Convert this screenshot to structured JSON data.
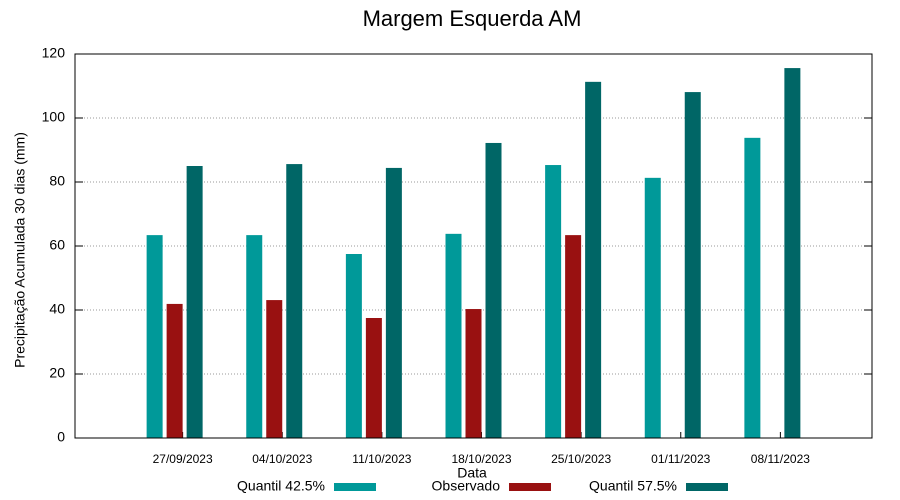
{
  "chart_data": {
    "type": "bar",
    "title": "Margem Esquerda AM",
    "x_label": "Data",
    "y_label": "Precipitação Acumulada 30 dias (mm)",
    "categories": [
      "27/09/2023",
      "04/10/2023",
      "11/10/2023",
      "18/10/2023",
      "25/10/2023",
      "01/11/2023",
      "08/11/2023"
    ],
    "series": [
      {
        "name": "Quantil 42.5%",
        "color": "#009999",
        "values": [
          63.4,
          63.4,
          57.5,
          63.8,
          85.3,
          81.3,
          93.8
        ]
      },
      {
        "name": "Observado",
        "color": "#991111",
        "values": [
          41.9,
          43.1,
          37.5,
          40.3,
          63.4,
          null,
          null
        ]
      },
      {
        "name": "Quantil 57.5%",
        "color": "#006666",
        "values": [
          85,
          85.6,
          84.4,
          92.2,
          111.3,
          108.1,
          115.6
        ]
      }
    ],
    "ylim": [
      0,
      120
    ],
    "yticks": [
      0,
      20,
      40,
      60,
      80,
      100,
      120
    ],
    "grid": true,
    "legend": "bottom"
  }
}
